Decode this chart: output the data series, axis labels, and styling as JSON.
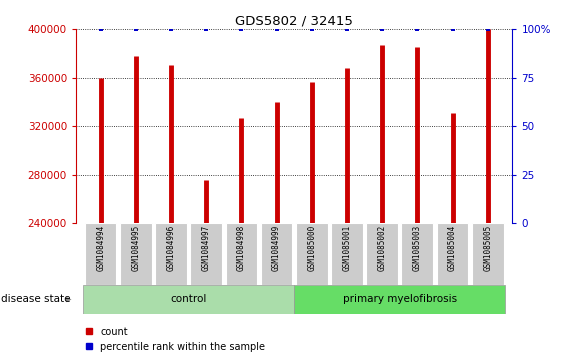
{
  "title": "GDS5802 / 32415",
  "categories": [
    "GSM1084994",
    "GSM1084995",
    "GSM1084996",
    "GSM1084997",
    "GSM1084998",
    "GSM1084999",
    "GSM1085000",
    "GSM1085001",
    "GSM1085002",
    "GSM1085003",
    "GSM1085004",
    "GSM1085005"
  ],
  "counts": [
    360000,
    378000,
    370000,
    276000,
    327000,
    340000,
    356000,
    368000,
    387000,
    385000,
    331000,
    400000
  ],
  "percentile_ranks": [
    100,
    100,
    100,
    100,
    100,
    100,
    100,
    100,
    100,
    100,
    100,
    100
  ],
  "bar_color": "#cc0000",
  "dot_color": "#0000cc",
  "ylim_left": [
    240000,
    400000
  ],
  "ylim_right": [
    0,
    100
  ],
  "yticks_left": [
    240000,
    280000,
    320000,
    360000,
    400000
  ],
  "yticks_right": [
    0,
    25,
    50,
    75,
    100
  ],
  "yticklabels_right": [
    "0",
    "25",
    "50",
    "75",
    "100%"
  ],
  "control_count": 6,
  "primary_count": 6,
  "disease_label": "disease state",
  "group_labels": [
    "control",
    "primary myelofibrosis"
  ],
  "control_color": "#aaddaa",
  "primary_color": "#66dd66",
  "bg_color": "#ffffff",
  "bar_axis_color": "#cc0000",
  "pct_axis_color": "#0000cc",
  "tick_bg_color": "#cccccc"
}
